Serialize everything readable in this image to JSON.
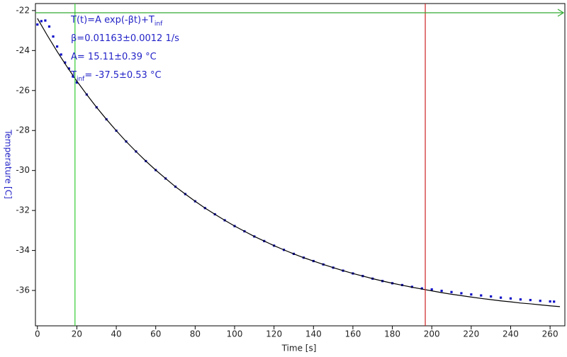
{
  "chart_data": {
    "type": "scatter",
    "xlabel": "Time [s]",
    "ylabel": "Temperature [C]",
    "xlim": [
      -1,
      267.5
    ],
    "ylim": [
      -37.77,
      -21.65
    ],
    "xticks": [
      0,
      20,
      40,
      60,
      80,
      100,
      120,
      140,
      160,
      180,
      200,
      220,
      240,
      260
    ],
    "yticks": [
      -36,
      -34,
      -32,
      -30,
      -28,
      -26,
      -24,
      -22
    ],
    "grid": false,
    "series": [
      {
        "color": "#1010c8",
        "marker": "square",
        "x": [
          0,
          2,
          4,
          6,
          8,
          10,
          12,
          14,
          16,
          18,
          20,
          25,
          30,
          35,
          40,
          45,
          50,
          55,
          60,
          65,
          70,
          75,
          80,
          85,
          90,
          95,
          100,
          105,
          110,
          115,
          120,
          125,
          130,
          135,
          140,
          145,
          150,
          155,
          160,
          165,
          170,
          175,
          180,
          185,
          190,
          195,
          200,
          205,
          210,
          215,
          220,
          225,
          230,
          235,
          240,
          245,
          250,
          255,
          260,
          262
        ],
        "values": [
          -22.7,
          -22.53,
          -22.5,
          -22.8,
          -23.3,
          -23.8,
          -24.2,
          -24.6,
          -24.9,
          -25.3,
          -25.6,
          -26.2,
          -26.84,
          -27.44,
          -28.01,
          -28.55,
          -29.05,
          -29.53,
          -29.98,
          -30.4,
          -30.81,
          -31.18,
          -31.54,
          -31.88,
          -32.19,
          -32.49,
          -32.78,
          -33.04,
          -33.3,
          -33.53,
          -33.76,
          -33.97,
          -34.17,
          -34.36,
          -34.53,
          -34.7,
          -34.86,
          -35.01,
          -35.15,
          -35.28,
          -35.41,
          -35.53,
          -35.64,
          -35.73,
          -35.82,
          -35.9,
          -35.95,
          -36.02,
          -36.08,
          -36.14,
          -36.2,
          -36.25,
          -36.3,
          -36.36,
          -36.4,
          -36.45,
          -36.48,
          -36.52,
          -36.55,
          -36.56
        ]
      },
      {
        "color": "#000000",
        "marker": "line",
        "x": [
          0,
          5,
          10,
          15,
          20,
          25,
          30,
          35,
          40,
          45,
          50,
          55,
          60,
          65,
          70,
          75,
          80,
          85,
          90,
          95,
          100,
          105,
          110,
          115,
          120,
          125,
          130,
          135,
          140,
          145,
          150,
          155,
          160,
          165,
          170,
          175,
          180,
          185,
          190,
          195,
          200,
          205,
          210,
          215,
          220,
          225,
          230,
          235,
          240,
          245,
          250,
          255,
          260,
          265
        ],
        "values": [
          -22.39,
          -23.24,
          -24.05,
          -24.81,
          -25.53,
          -26.2,
          -26.84,
          -27.44,
          -28.01,
          -28.55,
          -29.05,
          -29.53,
          -29.98,
          -30.4,
          -30.81,
          -31.18,
          -31.54,
          -31.88,
          -32.19,
          -32.49,
          -32.78,
          -33.04,
          -33.3,
          -33.53,
          -33.76,
          -33.97,
          -34.17,
          -34.36,
          -34.53,
          -34.7,
          -34.86,
          -35.01,
          -35.15,
          -35.28,
          -35.41,
          -35.53,
          -35.64,
          -35.74,
          -35.84,
          -35.93,
          -36.02,
          -36.11,
          -36.19,
          -36.26,
          -36.33,
          -36.4,
          -36.46,
          -36.52,
          -36.57,
          -36.63,
          -36.67,
          -36.72,
          -36.77,
          -36.81
        ]
      }
    ],
    "cursors": {
      "x": [
        {
          "value": 19.06,
          "color": "#33cc33"
        },
        {
          "value": 196.7,
          "color": "#cc2222"
        }
      ],
      "y": [
        {
          "value": -22.11,
          "color": "#33aa33"
        }
      ]
    },
    "annotations": [
      [
        {
          "text": "T(t)=A exp(-βt)+T"
        },
        {
          "text": "inf",
          "sub": true
        }
      ],
      [
        {
          "text": "β=0.01163±0.0012 1/s"
        }
      ],
      [
        {
          "text": "A= 15.11±0.39 °C"
        }
      ],
      [
        {
          "text": "T"
        },
        {
          "text": "inf",
          "sub": true
        },
        {
          "text": "= -37.5±0.53 °C"
        }
      ]
    ]
  }
}
